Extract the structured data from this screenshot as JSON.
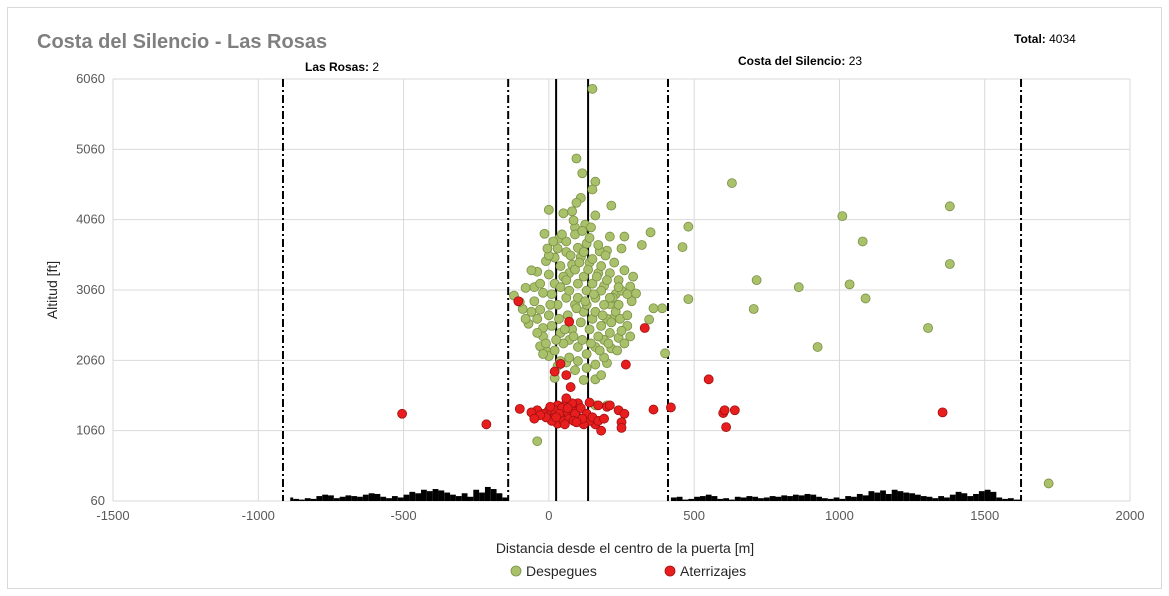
{
  "chart_data": {
    "type": "scatter",
    "title": "Costa del Silencio - Las Rosas",
    "xlabel": "Distancia desde el centro de la puerta [m]",
    "ylabel": "Altitud [ft]",
    "xlim": [
      -1500,
      2000
    ],
    "ylim": [
      60,
      6060
    ],
    "xticks": [
      -1500,
      -1000,
      -500,
      0,
      500,
      1000,
      1500,
      2000
    ],
    "yticks": [
      60,
      1060,
      2060,
      3060,
      4060,
      5060,
      6060
    ],
    "grid": true,
    "legend_position": "bottom",
    "total": {
      "label": "Total:",
      "value": "4034"
    },
    "annotations": [
      {
        "label": "Las Rosas:",
        "value": "2"
      },
      {
        "label": "Costa del Silencio:",
        "value": "23"
      }
    ],
    "gate_lines": {
      "dashdot_x": [
        -915,
        -140,
        410,
        1625
      ],
      "solid_x": [
        25,
        135
      ]
    },
    "terrain_profile": {
      "x": [
        -915,
        -890,
        -880,
        -860,
        -840,
        -820,
        -800,
        -780,
        -760,
        -740,
        -720,
        -700,
        -680,
        -660,
        -640,
        -620,
        -600,
        -580,
        -560,
        -540,
        -520,
        -500,
        -480,
        -460,
        -440,
        -420,
        -400,
        -380,
        -360,
        -340,
        -320,
        -300,
        -280,
        -260,
        -240,
        -220,
        -200,
        -180,
        -160,
        -140,
        410,
        420,
        440,
        460,
        480,
        500,
        520,
        540,
        560,
        580,
        600,
        620,
        640,
        660,
        680,
        700,
        720,
        740,
        760,
        780,
        800,
        820,
        840,
        860,
        880,
        900,
        920,
        940,
        960,
        980,
        1000,
        1020,
        1040,
        1060,
        1080,
        1100,
        1120,
        1140,
        1160,
        1180,
        1200,
        1220,
        1240,
        1260,
        1280,
        1300,
        1320,
        1340,
        1360,
        1380,
        1400,
        1420,
        1440,
        1460,
        1480,
        1500,
        1520,
        1540,
        1560,
        1580,
        1600,
        1625
      ],
      "y": [
        60,
        110,
        90,
        80,
        100,
        90,
        130,
        150,
        140,
        100,
        120,
        140,
        130,
        120,
        150,
        170,
        160,
        120,
        100,
        130,
        110,
        150,
        190,
        170,
        220,
        200,
        230,
        210,
        180,
        150,
        130,
        170,
        120,
        220,
        180,
        260,
        230,
        170,
        110,
        60,
        60,
        110,
        120,
        80,
        90,
        120,
        130,
        150,
        130,
        90,
        100,
        80,
        120,
        110,
        130,
        120,
        100,
        110,
        130,
        120,
        140,
        130,
        150,
        140,
        160,
        150,
        120,
        100,
        90,
        110,
        90,
        130,
        120,
        160,
        140,
        200,
        180,
        210,
        160,
        220,
        200,
        180,
        170,
        150,
        130,
        120,
        100,
        130,
        110,
        150,
        190,
        170,
        130,
        160,
        200,
        220,
        190,
        110,
        90,
        100,
        80,
        60
      ]
    },
    "series": [
      {
        "name": "Despegues",
        "color": "#a9c16b",
        "points": [
          [
            150,
            5920
          ],
          [
            95,
            4930
          ],
          [
            115,
            4720
          ],
          [
            160,
            4600
          ],
          [
            150,
            4490
          ],
          [
            110,
            4370
          ],
          [
            95,
            4300
          ],
          [
            215,
            4260
          ],
          [
            630,
            4580
          ],
          [
            0,
            4200
          ],
          [
            50,
            4150
          ],
          [
            80,
            4180
          ],
          [
            160,
            4120
          ],
          [
            -15,
            3860
          ],
          [
            35,
            3790
          ],
          [
            90,
            3950
          ],
          [
            125,
            3990
          ],
          [
            210,
            3820
          ],
          [
            260,
            3820
          ],
          [
            320,
            3700
          ],
          [
            250,
            3650
          ],
          [
            200,
            3620
          ],
          [
            175,
            3610
          ],
          [
            130,
            3720
          ],
          [
            100,
            3660
          ],
          [
            60,
            3600
          ],
          [
            20,
            3520
          ],
          [
            -10,
            3470
          ],
          [
            -40,
            3320
          ],
          [
            -60,
            3340
          ],
          [
            -80,
            3090
          ],
          [
            -120,
            2980
          ],
          [
            -90,
            2790
          ],
          [
            -70,
            2580
          ],
          [
            -40,
            2650
          ],
          [
            -20,
            2520
          ],
          [
            -10,
            2200
          ],
          [
            -30,
            2260
          ],
          [
            0,
            2120
          ],
          [
            30,
            1980
          ],
          [
            60,
            2030
          ],
          [
            90,
            1920
          ],
          [
            120,
            1780
          ],
          [
            160,
            1790
          ],
          [
            180,
            1850
          ],
          [
            200,
            2020
          ],
          [
            215,
            2230
          ],
          [
            240,
            2380
          ],
          [
            270,
            2550
          ],
          [
            300,
            3010
          ],
          [
            290,
            3250
          ],
          [
            280,
            3110
          ],
          [
            260,
            3340
          ],
          [
            240,
            3200
          ],
          [
            230,
            3000
          ],
          [
            210,
            2860
          ],
          [
            220,
            2650
          ],
          [
            250,
            2480
          ],
          [
            20,
            1810
          ],
          [
            350,
            3880
          ],
          [
            460,
            3670
          ],
          [
            480,
            3960
          ],
          [
            390,
            2800
          ],
          [
            400,
            2160
          ],
          [
            360,
            2800
          ],
          [
            345,
            2640
          ],
          [
            480,
            2930
          ],
          [
            705,
            2790
          ],
          [
            715,
            3200
          ],
          [
            860,
            3100
          ],
          [
            925,
            2250
          ],
          [
            1010,
            4110
          ],
          [
            1035,
            3140
          ],
          [
            1080,
            3750
          ],
          [
            1090,
            2940
          ],
          [
            1305,
            2520
          ],
          [
            1380,
            4250
          ],
          [
            1380,
            3430
          ],
          [
            1720,
            310
          ],
          [
            -40,
            910
          ],
          [
            160,
            1420
          ],
          [
            200,
            1420
          ],
          [
            -100,
            2890
          ],
          [
            -50,
            3100
          ],
          [
            0,
            3280
          ],
          [
            40,
            3400
          ],
          [
            70,
            3300
          ],
          [
            100,
            3150
          ],
          [
            130,
            3050
          ],
          [
            160,
            2950
          ],
          [
            190,
            3120
          ],
          [
            170,
            3300
          ],
          [
            140,
            3450
          ],
          [
            110,
            3530
          ],
          [
            80,
            3420
          ],
          [
            50,
            3250
          ],
          [
            20,
            3150
          ],
          [
            -20,
            3020
          ],
          [
            -50,
            2900
          ],
          [
            -30,
            2780
          ],
          [
            0,
            2700
          ],
          [
            30,
            2850
          ],
          [
            60,
            2950
          ],
          [
            90,
            2850
          ],
          [
            120,
            2750
          ],
          [
            150,
            2650
          ],
          [
            180,
            2550
          ],
          [
            210,
            2450
          ],
          [
            190,
            2350
          ],
          [
            160,
            2250
          ],
          [
            130,
            2150
          ],
          [
            100,
            2250
          ],
          [
            70,
            2350
          ],
          [
            40,
            2450
          ],
          [
            10,
            2550
          ],
          [
            -20,
            2400
          ],
          [
            -10,
            2300
          ],
          [
            20,
            2200
          ],
          [
            50,
            2300
          ],
          [
            80,
            2500
          ],
          [
            110,
            2600
          ],
          [
            140,
            2500
          ],
          [
            170,
            2400
          ],
          [
            200,
            2650
          ],
          [
            230,
            2750
          ],
          [
            10,
            3000
          ],
          [
            40,
            3100
          ],
          [
            70,
            3050
          ],
          [
            100,
            2950
          ],
          [
            130,
            2850
          ],
          [
            160,
            2750
          ],
          [
            190,
            2850
          ],
          [
            220,
            2950
          ],
          [
            250,
            3050
          ],
          [
            60,
            3750
          ],
          [
            90,
            3850
          ],
          [
            120,
            3600
          ],
          [
            150,
            3500
          ],
          [
            180,
            3400
          ],
          [
            210,
            3300
          ],
          [
            240,
            3100
          ],
          [
            30,
            3650
          ],
          [
            0,
            3550
          ],
          [
            -30,
            3150
          ],
          [
            -60,
            2750
          ],
          [
            -80,
            2650
          ],
          [
            -40,
            2450
          ],
          [
            -20,
            2150
          ],
          [
            40,
            2050
          ],
          [
            70,
            2100
          ],
          [
            100,
            2050
          ],
          [
            130,
            1950
          ],
          [
            160,
            2000
          ],
          [
            190,
            2100
          ],
          [
            120,
            3250
          ],
          [
            90,
            3350
          ],
          [
            60,
            3200
          ],
          [
            150,
            3150
          ],
          [
            180,
            3050
          ],
          [
            210,
            2950
          ],
          [
            240,
            2850
          ],
          [
            5,
            2850
          ],
          [
            35,
            2650
          ],
          [
            65,
            2700
          ],
          [
            95,
            2800
          ],
          [
            125,
            2900
          ],
          [
            155,
            3000
          ],
          [
            185,
            2700
          ],
          [
            215,
            2600
          ],
          [
            245,
            2650
          ],
          [
            75,
            3550
          ],
          [
            105,
            3450
          ],
          [
            135,
            3350
          ],
          [
            165,
            3250
          ],
          [
            195,
            3550
          ],
          [
            225,
            3450
          ],
          [
            45,
            3850
          ],
          [
            15,
            3750
          ],
          [
            -5,
            3650
          ],
          [
            140,
            3800
          ],
          [
            170,
            3700
          ],
          [
            200,
            3200
          ],
          [
            85,
            4050
          ],
          [
            115,
            3900
          ],
          [
            145,
            3950
          ],
          [
            55,
            2500
          ],
          [
            25,
            2350
          ],
          [
            85,
            2400
          ],
          [
            115,
            2350
          ],
          [
            145,
            2300
          ],
          [
            175,
            2200
          ],
          [
            205,
            2300
          ],
          [
            235,
            2200
          ],
          [
            260,
            2300
          ],
          [
            280,
            2400
          ],
          [
            270,
            2700
          ],
          [
            285,
            2900
          ],
          [
            270,
            3000
          ]
        ]
      },
      {
        "name": "Aterrizajes",
        "color": "#e81e1e",
        "points": [
          [
            70,
            2610
          ],
          [
            -105,
            2900
          ],
          [
            330,
            2520
          ],
          [
            40,
            2010
          ],
          [
            20,
            1900
          ],
          [
            60,
            1850
          ],
          [
            265,
            2000
          ],
          [
            550,
            1790
          ],
          [
            75,
            1680
          ],
          [
            60,
            1450
          ],
          [
            100,
            1450
          ],
          [
            140,
            1460
          ],
          [
            170,
            1420
          ],
          [
            200,
            1400
          ],
          [
            210,
            1420
          ],
          [
            240,
            1350
          ],
          [
            260,
            1300
          ],
          [
            250,
            1180
          ],
          [
            250,
            1100
          ],
          [
            180,
            1060
          ],
          [
            160,
            1150
          ],
          [
            140,
            1200
          ],
          [
            120,
            1150
          ],
          [
            100,
            1250
          ],
          [
            80,
            1350
          ],
          [
            60,
            1300
          ],
          [
            40,
            1250
          ],
          [
            20,
            1300
          ],
          [
            0,
            1350
          ],
          [
            -20,
            1300
          ],
          [
            -40,
            1350
          ],
          [
            -60,
            1320
          ],
          [
            -100,
            1370
          ],
          [
            -505,
            1300
          ],
          [
            -215,
            1150
          ],
          [
            360,
            1360
          ],
          [
            420,
            1390
          ],
          [
            600,
            1310
          ],
          [
            605,
            1350
          ],
          [
            640,
            1350
          ],
          [
            610,
            1110
          ],
          [
            1355,
            1320
          ],
          [
            30,
            1160
          ],
          [
            50,
            1200
          ],
          [
            10,
            1200
          ],
          [
            -10,
            1250
          ],
          [
            70,
            1230
          ],
          [
            90,
            1300
          ],
          [
            110,
            1380
          ],
          [
            130,
            1300
          ],
          [
            150,
            1250
          ],
          [
            170,
            1200
          ],
          [
            190,
            1230
          ],
          [
            80,
            1450
          ],
          [
            60,
            1520
          ],
          [
            30,
            1420
          ],
          [
            20,
            1350
          ],
          [
            -30,
            1280
          ],
          [
            -50,
            1230
          ],
          [
            5,
            1400
          ],
          [
            45,
            1380
          ],
          [
            85,
            1200
          ],
          [
            115,
            1230
          ],
          [
            35,
            1300
          ],
          [
            55,
            1150
          ],
          [
            25,
            1250
          ],
          [
            65,
            1380
          ],
          [
            95,
            1180
          ]
        ]
      }
    ]
  }
}
